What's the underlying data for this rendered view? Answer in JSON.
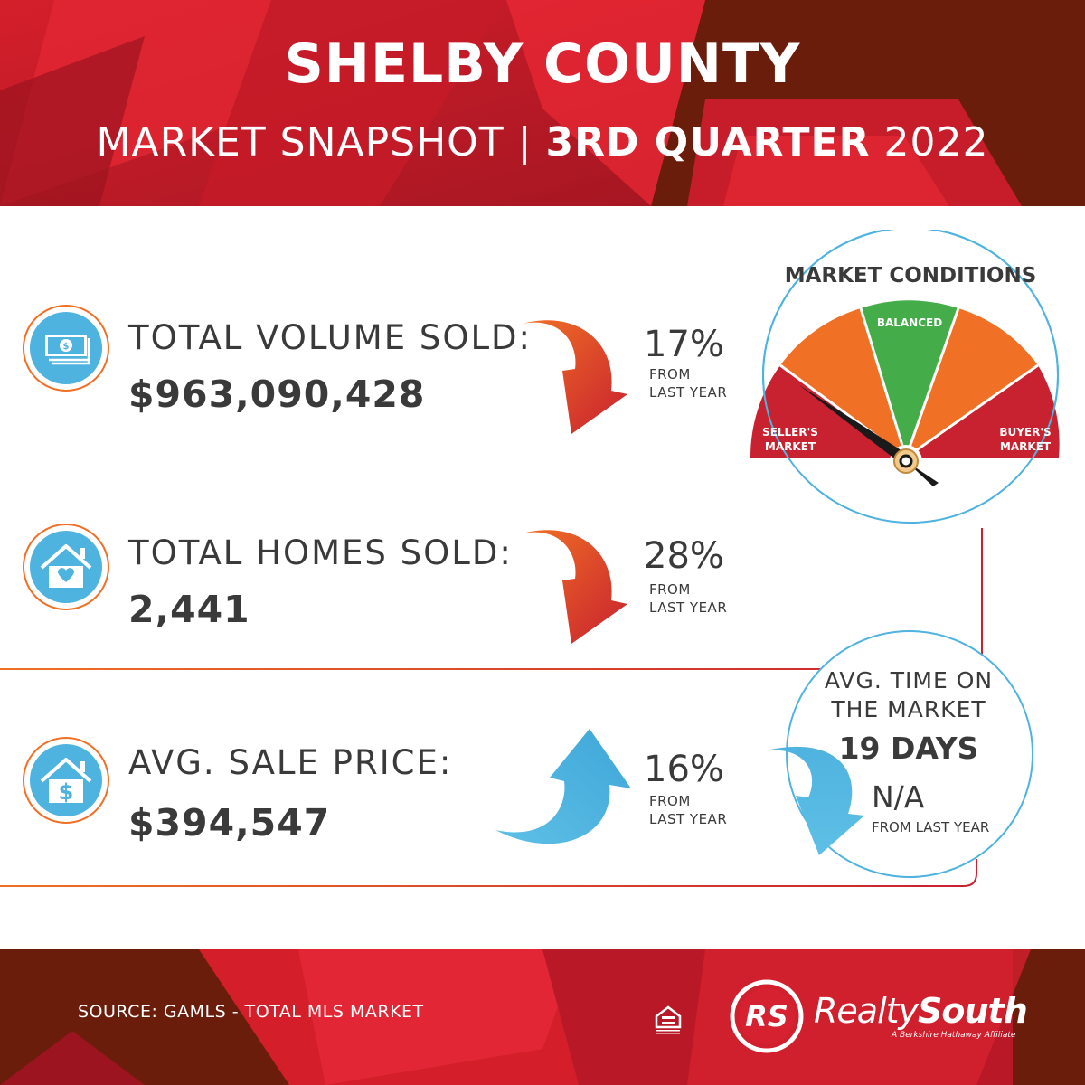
{
  "header": {
    "title": "SHELBY COUNTY",
    "subtitle_prefix": "MARKET SNAPSHOT | ",
    "subtitle_quarter": "3RD QUARTER",
    "subtitle_year": " 2022"
  },
  "stats": [
    {
      "label": "TOTAL VOLUME SOLD:",
      "value": "$963,090,428",
      "percent": "17%",
      "note_1": "FROM",
      "note_2": "LAST YEAR",
      "direction": "down",
      "icon": "money-icon"
    },
    {
      "label": "TOTAL HOMES SOLD:",
      "value": "2,441",
      "percent": "28%",
      "note_1": "FROM",
      "note_2": "LAST YEAR",
      "direction": "down",
      "icon": "house-heart-icon"
    },
    {
      "label": "AVG. SALE PRICE:",
      "value": "$394,547",
      "percent": "16%",
      "note_1": "FROM",
      "note_2": "LAST YEAR",
      "direction": "up",
      "icon": "house-dollar-icon"
    }
  ],
  "gauge": {
    "title": "MARKET CONDITIONS",
    "sellers_1": "SELLER'S",
    "sellers_2": "MARKET",
    "balanced": "BALANCED",
    "buyers_1": "BUYER'S",
    "buyers_2": "MARKET",
    "needle": "seller's market"
  },
  "time_on_market": {
    "line_1": "AVG. TIME ON",
    "line_2": "THE MARKET",
    "days": "19 DAYS",
    "change": "N/A",
    "note": "FROM LAST YEAR"
  },
  "footer": {
    "source": "SOURCE: GAMLS - TOTAL MLS MARKET",
    "brand_realty": "Realty",
    "brand_south": "South",
    "brand_tagline": "A Berkshire Hathaway Affiliate",
    "brand_monogram": "RS",
    "equal_housing": "EQUAL HOUSING OPPORTUNITY"
  },
  "colors": {
    "dark_red": "#6b1d0c",
    "bright_red": "#e0202c",
    "orange": "#f07025",
    "green": "#44ad49",
    "gauge_red": "#c8212f",
    "blue": "#4fb3df",
    "text": "#3a3a3a"
  }
}
